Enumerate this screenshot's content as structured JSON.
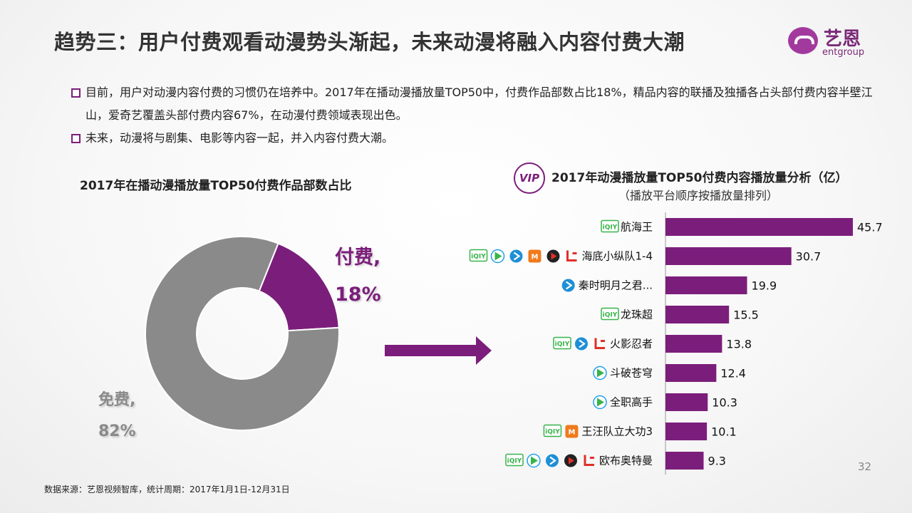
{
  "header": {
    "title": "趋势三：用户付费观看动漫势头渐起，未来动漫将融入内容付费大潮",
    "logo_name": "艺恩",
    "logo_sub": "entgroup"
  },
  "bullets": [
    "目前，用户对动漫内容付费的习惯仍在培养中。2017年在播动漫播放量TOP50中，付费作品部数占比18%，精品内容的联播及独播各占头部付费内容半壁江山，爱奇艺覆盖头部付费内容67%，在动漫付费领域表现出色。",
    "未来，动漫将与剧集、电影等内容一起，并入内容付费大潮。"
  ],
  "left_chart": {
    "title": "2017年在播动漫播放量TOP50付费作品部数占比",
    "paid_label_line1": "付费,",
    "paid_label_line2": "18%",
    "free_label_line1": "免费,",
    "free_label_line2": "82%"
  },
  "right_chart": {
    "vip_badge": "VIP",
    "title": "2017年动漫播放量TOP50付费内容播放量分析（亿）",
    "subtitle": "（播放平台顺序按播放量排列）"
  },
  "colors": {
    "paid": "#7b1e7b",
    "free": "#8a8a8a",
    "bar": "#7b1e7b",
    "iqiyi": "#37b34a",
    "tencent": "#22a0e8",
    "youku": "#1e8fd6",
    "mgtv": "#f07a1c",
    "sohu": "#e0302a",
    "letv": "#e0302a"
  },
  "chart_data": [
    {
      "type": "pie",
      "categories": [
        "付费",
        "免费"
      ],
      "values": [
        18,
        82
      ],
      "title": "2017年在播动漫播放量TOP50付费作品部数占比"
    },
    {
      "type": "bar",
      "title": "2017年动漫播放量TOP50付费内容播放量分析（亿）",
      "subtitle": "（播放平台顺序按播放量排列）",
      "categories": [
        "航海王",
        "海底小纵队1-4",
        "秦时明月之君...",
        "龙珠超",
        "火影忍者",
        "斗破苍穹",
        "全职高手",
        "王汪队立大功3",
        "欧布奥特曼"
      ],
      "values": [
        45.7,
        30.7,
        19.9,
        15.5,
        13.8,
        12.4,
        10.3,
        10.1,
        9.3
      ],
      "platforms": [
        [
          "iqiyi"
        ],
        [
          "iqiyi",
          "tencent",
          "youku",
          "mgtv",
          "sohu",
          "letv"
        ],
        [
          "youku"
        ],
        [
          "iqiyi"
        ],
        [
          "iqiyi",
          "youku",
          "letv"
        ],
        [
          "tencent"
        ],
        [
          "tencent"
        ],
        [
          "iqiyi",
          "mgtv"
        ],
        [
          "iqiyi",
          "tencent",
          "youku",
          "sohu",
          "letv"
        ]
      ]
    }
  ],
  "footer": {
    "source": "数据来源：艺恩视频智库，统计周期：2017年1月1日-12月31日",
    "page_number": "32"
  }
}
